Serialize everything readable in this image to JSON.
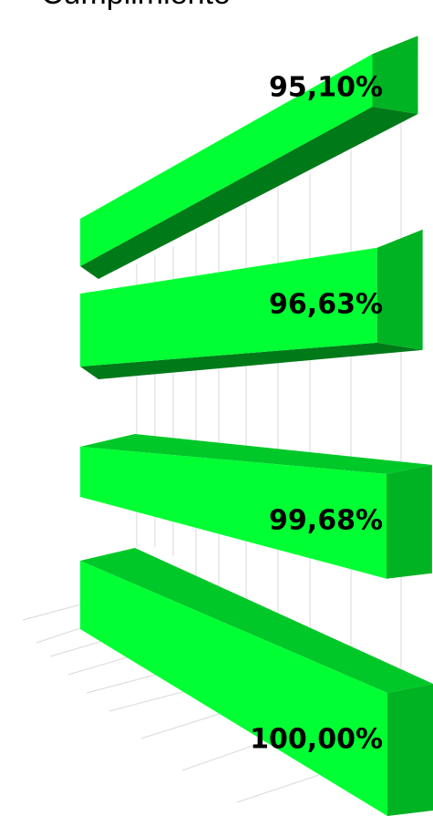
{
  "chart_data": {
    "type": "bar",
    "orientation": "horizontal",
    "title": "Cumplimiento",
    "values": [
      95.1,
      96.63,
      99.68,
      100
    ],
    "value_labels": [
      "95,10%",
      "96,63%",
      "99,68%",
      "100,00%"
    ],
    "color": "#00ff33",
    "xlim": [
      0,
      100
    ]
  }
}
